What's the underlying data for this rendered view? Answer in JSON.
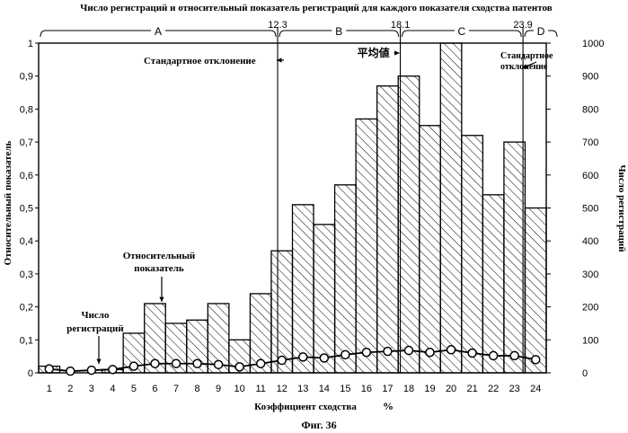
{
  "chart_data": {
    "type": "bar",
    "title": "Число регистраций и относительный показатель регистраций для каждого показателя сходства патентов",
    "xlabel": "Коэффициент сходства",
    "xlabel_unit": "%",
    "ylabel_left": "Относительный показатель",
    "ylabel_right": "Число регистраций",
    "categories": [
      "1",
      "2",
      "3",
      "4",
      "5",
      "6",
      "7",
      "8",
      "9",
      "10",
      "11",
      "12",
      "13",
      "14",
      "15",
      "16",
      "17",
      "18",
      "19",
      "20",
      "21",
      "22",
      "23",
      "24"
    ],
    "left_ticks": [
      "0",
      "0,1",
      "0,2",
      "0,3",
      "0,4",
      "0,5",
      "0,6",
      "0,7",
      "0,8",
      "0,9",
      "1"
    ],
    "right_ticks": [
      "0",
      "100",
      "200",
      "300",
      "400",
      "500",
      "600",
      "700",
      "800",
      "900",
      "1000"
    ],
    "ylim_left": [
      0,
      1
    ],
    "ylim_right": [
      0,
      1000
    ],
    "series": [
      {
        "name": "Относительный показатель",
        "kind": "bar",
        "axis": "left",
        "values": [
          0.02,
          0.0,
          0.0,
          0.01,
          0.12,
          0.21,
          0.15,
          0.16,
          0.21,
          0.1,
          0.24,
          0.37,
          0.51,
          0.45,
          0.57,
          0.77,
          0.87,
          0.9,
          0.75,
          1.0,
          0.72,
          0.54,
          0.7,
          0.5
        ]
      },
      {
        "name": "Число регистраций",
        "kind": "line",
        "axis": "right",
        "values": [
          12,
          5,
          8,
          10,
          20,
          28,
          28,
          28,
          25,
          18,
          28,
          38,
          48,
          45,
          55,
          62,
          65,
          68,
          62,
          70,
          60,
          52,
          52,
          40
        ]
      }
    ],
    "regions": [
      {
        "label": "A"
      },
      {
        "label": "B"
      },
      {
        "label": "C"
      },
      {
        "label": "D"
      }
    ],
    "boundaries": [
      {
        "label": "12.3",
        "value": 12.3
      },
      {
        "label": "18.1",
        "value": 18.1
      },
      {
        "label": "23.9",
        "value": 23.9
      }
    ],
    "annotations": {
      "std_left": "Стандартное отклонение",
      "mean": "平均値",
      "std_right_line1": "Стандартное",
      "std_right_line2": "отклонение",
      "rel_label_line1": "Относительный",
      "rel_label_line2": "показатель",
      "count_label_line1": "Число",
      "count_label_line2": "регистраций"
    },
    "figure_caption": "Фиг. 36",
    "colors": {
      "ink": "#000000",
      "background": "#ffffff"
    }
  }
}
